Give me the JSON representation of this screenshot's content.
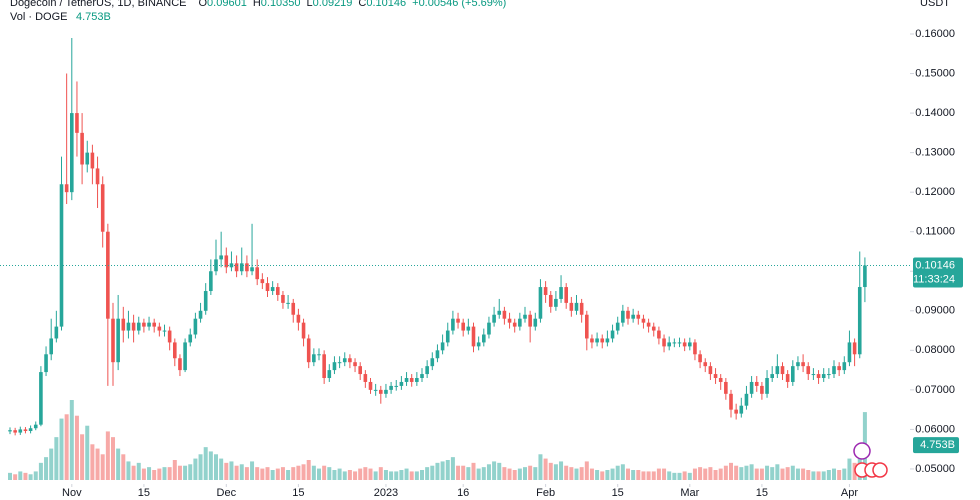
{
  "chart_data": {
    "type": "candlestick",
    "title": "Dogecoin / TetherUS, 1D, BINANCE",
    "legend": [
      {
        "key": "O",
        "value": "0.09601"
      },
      {
        "key": "H",
        "value": "0.10350"
      },
      {
        "key": "L",
        "value": "0.09219"
      },
      {
        "key": "C",
        "value": "0.10146"
      },
      {
        "key": "",
        "value": "+0.00546 (+5.69%)"
      }
    ],
    "volume_title": "Vol · DOGE",
    "volume_label": "4.753B",
    "currency": "USDT",
    "last_price_label": "0.10146",
    "countdown": "11:33:24",
    "up_color": "#26a69a",
    "down_color": "#ef5350",
    "grid": false,
    "ylim": [
      0.0467,
      0.1686
    ],
    "yticks": [
      {
        "value": 0.05,
        "label": "0.05000"
      },
      {
        "value": 0.06,
        "label": "0.06000"
      },
      {
        "value": 0.07,
        "label": "0.07000"
      },
      {
        "value": 0.08,
        "label": "0.08000"
      },
      {
        "value": 0.09,
        "label": "0.09000"
      },
      {
        "value": 0.1,
        "label": "0.10000"
      },
      {
        "value": 0.11,
        "label": "0.11000"
      },
      {
        "value": 0.12,
        "label": "0.12000"
      },
      {
        "value": 0.13,
        "label": "0.13000"
      },
      {
        "value": 0.14,
        "label": "0.14000"
      },
      {
        "value": 0.15,
        "label": "0.15000"
      },
      {
        "value": 0.16,
        "label": "0.16000"
      }
    ],
    "xticks": [
      {
        "value": 12,
        "label": "Nov"
      },
      {
        "value": 26,
        "label": "15"
      },
      {
        "value": 42,
        "label": "Dec"
      },
      {
        "value": 56,
        "label": "15"
      },
      {
        "value": 73,
        "label": "2023"
      },
      {
        "value": 88,
        "label": "16"
      },
      {
        "value": 104,
        "label": "Feb"
      },
      {
        "value": 118,
        "label": "15"
      },
      {
        "value": 132,
        "label": "Mar"
      },
      {
        "value": 146,
        "label": "15"
      },
      {
        "value": 163,
        "label": "Apr"
      }
    ],
    "open": [
      0.0595,
      0.0598,
      0.0592,
      0.06,
      0.0596,
      0.0603,
      0.0612,
      0.0745,
      0.079,
      0.083,
      0.086,
      0.122,
      0.12,
      0.14,
      0.135,
      0.127,
      0.13,
      0.126,
      0.122,
      0.11,
      0.088,
      0.077,
      0.088,
      0.085,
      0.087,
      0.085,
      0.087,
      0.086,
      0.087,
      0.086,
      0.085,
      0.085,
      0.082,
      0.078,
      0.075,
      0.082,
      0.084,
      0.088,
      0.09,
      0.095,
      0.1,
      0.103,
      0.104,
      0.101,
      0.102,
      0.1,
      0.102,
      0.1,
      0.101,
      0.098,
      0.097,
      0.095,
      0.096,
      0.094,
      0.092,
      0.092,
      0.089,
      0.087,
      0.083,
      0.077,
      0.079,
      0.079,
      0.073,
      0.075,
      0.077,
      0.077,
      0.078,
      0.077,
      0.076,
      0.074,
      0.072,
      0.07,
      0.07,
      0.069,
      0.07,
      0.071,
      0.071,
      0.072,
      0.073,
      0.072,
      0.073,
      0.074,
      0.076,
      0.078,
      0.08,
      0.082,
      0.085,
      0.088,
      0.087,
      0.085,
      0.086,
      0.081,
      0.082,
      0.084,
      0.087,
      0.089,
      0.09,
      0.088,
      0.087,
      0.086,
      0.088,
      0.089,
      0.086,
      0.088,
      0.096,
      0.094,
      0.091,
      0.093,
      0.096,
      0.092,
      0.09,
      0.092,
      0.089,
      0.083,
      0.082,
      0.083,
      0.082,
      0.083,
      0.085,
      0.087,
      0.09,
      0.088,
      0.089,
      0.088,
      0.087,
      0.086,
      0.085,
      0.083,
      0.081,
      0.082,
      0.082,
      0.082,
      0.081,
      0.082,
      0.079,
      0.077,
      0.076,
      0.074,
      0.073,
      0.072,
      0.069,
      0.065,
      0.064,
      0.066,
      0.069,
      0.072,
      0.071,
      0.069,
      0.073,
      0.074,
      0.076,
      0.074,
      0.072,
      0.076,
      0.077,
      0.076,
      0.074,
      0.074,
      0.073,
      0.074,
      0.074,
      0.076,
      0.075,
      0.077,
      0.082,
      0.079,
      0.09601
    ],
    "high": [
      0.0605,
      0.0604,
      0.0607,
      0.0606,
      0.061,
      0.062,
      0.076,
      0.081,
      0.088,
      0.09,
      0.129,
      0.15,
      0.159,
      0.148,
      0.14,
      0.133,
      0.132,
      0.129,
      0.124,
      0.112,
      0.092,
      0.094,
      0.091,
      0.09,
      0.089,
      0.0885,
      0.088,
      0.0885,
      0.088,
      0.087,
      0.0865,
      0.086,
      0.083,
      0.079,
      0.083,
      0.0855,
      0.0895,
      0.092,
      0.097,
      0.103,
      0.108,
      0.11,
      0.106,
      0.105,
      0.104,
      0.106,
      0.104,
      0.112,
      0.103,
      0.0995,
      0.0985,
      0.0975,
      0.097,
      0.095,
      0.094,
      0.093,
      0.0905,
      0.088,
      0.084,
      0.0805,
      0.0805,
      0.08,
      0.0765,
      0.0785,
      0.0785,
      0.0795,
      0.079,
      0.078,
      0.077,
      0.075,
      0.073,
      0.0715,
      0.071,
      0.0715,
      0.072,
      0.0725,
      0.0735,
      0.0745,
      0.074,
      0.0745,
      0.0755,
      0.0775,
      0.0795,
      0.0815,
      0.084,
      0.087,
      0.09,
      0.0895,
      0.088,
      0.088,
      0.087,
      0.0835,
      0.0855,
      0.0885,
      0.091,
      0.093,
      0.091,
      0.0895,
      0.088,
      0.0895,
      0.091,
      0.09,
      0.0895,
      0.098,
      0.0975,
      0.095,
      0.095,
      0.099,
      0.097,
      0.0935,
      0.094,
      0.093,
      0.09,
      0.084,
      0.0845,
      0.084,
      0.085,
      0.0865,
      0.0885,
      0.0915,
      0.091,
      0.0905,
      0.09,
      0.089,
      0.088,
      0.087,
      0.086,
      0.084,
      0.0835,
      0.083,
      0.0832,
      0.083,
      0.0832,
      0.0828,
      0.08,
      0.078,
      0.077,
      0.0755,
      0.074,
      0.073,
      0.07,
      0.0665,
      0.068,
      0.071,
      0.0735,
      0.0735,
      0.072,
      0.075,
      0.076,
      0.079,
      0.077,
      0.075,
      0.0775,
      0.0785,
      0.079,
      0.077,
      0.0755,
      0.075,
      0.0755,
      0.0755,
      0.0775,
      0.077,
      0.0785,
      0.085,
      0.083,
      0.105,
      0.1035
    ],
    "low": [
      0.0588,
      0.0585,
      0.0586,
      0.059,
      0.059,
      0.0598,
      0.0608,
      0.0735,
      0.0775,
      0.082,
      0.085,
      0.117,
      0.118,
      0.129,
      0.122,
      0.125,
      0.122,
      0.116,
      0.106,
      0.071,
      0.071,
      0.075,
      0.082,
      0.083,
      0.082,
      0.084,
      0.0845,
      0.085,
      0.0845,
      0.0835,
      0.0835,
      0.08,
      0.076,
      0.0735,
      0.0745,
      0.081,
      0.083,
      0.087,
      0.089,
      0.094,
      0.099,
      0.101,
      0.0995,
      0.1,
      0.0985,
      0.099,
      0.0985,
      0.099,
      0.0965,
      0.0955,
      0.0935,
      0.094,
      0.0925,
      0.0905,
      0.0905,
      0.087,
      0.085,
      0.081,
      0.0755,
      0.076,
      0.0775,
      0.0715,
      0.072,
      0.074,
      0.0755,
      0.076,
      0.0755,
      0.0745,
      0.0725,
      0.0705,
      0.069,
      0.0685,
      0.0665,
      0.068,
      0.069,
      0.0698,
      0.07,
      0.071,
      0.0708,
      0.071,
      0.072,
      0.073,
      0.075,
      0.077,
      0.079,
      0.081,
      0.084,
      0.0855,
      0.0835,
      0.084,
      0.0795,
      0.08,
      0.081,
      0.083,
      0.086,
      0.088,
      0.0865,
      0.0855,
      0.0845,
      0.085,
      0.087,
      0.082,
      0.085,
      0.087,
      0.092,
      0.0895,
      0.09,
      0.092,
      0.0905,
      0.0885,
      0.089,
      0.087,
      0.08,
      0.0805,
      0.081,
      0.0805,
      0.081,
      0.082,
      0.084,
      0.086,
      0.0865,
      0.087,
      0.0865,
      0.0855,
      0.0845,
      0.0835,
      0.0815,
      0.0795,
      0.08,
      0.0808,
      0.0808,
      0.0798,
      0.08,
      0.0775,
      0.0755,
      0.0745,
      0.0725,
      0.0715,
      0.07,
      0.0675,
      0.063,
      0.0625,
      0.063,
      0.065,
      0.068,
      0.0695,
      0.0675,
      0.068,
      0.072,
      0.073,
      0.0725,
      0.0705,
      0.071,
      0.075,
      0.0745,
      0.0725,
      0.0725,
      0.0715,
      0.072,
      0.0728,
      0.073,
      0.0735,
      0.074,
      0.076,
      0.076,
      0.078,
      0.09219
    ],
    "close": [
      0.0598,
      0.0592,
      0.06,
      0.0596,
      0.0603,
      0.0612,
      0.0745,
      0.079,
      0.083,
      0.086,
      0.122,
      0.12,
      0.14,
      0.135,
      0.127,
      0.13,
      0.126,
      0.122,
      0.11,
      0.088,
      0.077,
      0.088,
      0.085,
      0.087,
      0.085,
      0.087,
      0.086,
      0.087,
      0.086,
      0.085,
      0.085,
      0.082,
      0.078,
      0.075,
      0.082,
      0.084,
      0.088,
      0.09,
      0.095,
      0.1,
      0.103,
      0.104,
      0.101,
      0.102,
      0.1,
      0.102,
      0.1,
      0.101,
      0.098,
      0.097,
      0.095,
      0.096,
      0.094,
      0.092,
      0.092,
      0.089,
      0.087,
      0.083,
      0.077,
      0.079,
      0.079,
      0.073,
      0.075,
      0.077,
      0.077,
      0.078,
      0.077,
      0.076,
      0.074,
      0.072,
      0.07,
      0.07,
      0.069,
      0.07,
      0.071,
      0.071,
      0.072,
      0.073,
      0.072,
      0.073,
      0.074,
      0.076,
      0.078,
      0.08,
      0.082,
      0.085,
      0.088,
      0.087,
      0.085,
      0.086,
      0.081,
      0.082,
      0.084,
      0.087,
      0.089,
      0.09,
      0.088,
      0.087,
      0.086,
      0.088,
      0.089,
      0.086,
      0.088,
      0.096,
      0.094,
      0.091,
      0.093,
      0.096,
      0.092,
      0.09,
      0.092,
      0.089,
      0.083,
      0.082,
      0.083,
      0.082,
      0.083,
      0.085,
      0.087,
      0.09,
      0.088,
      0.089,
      0.088,
      0.087,
      0.086,
      0.085,
      0.083,
      0.081,
      0.082,
      0.082,
      0.082,
      0.081,
      0.082,
      0.079,
      0.077,
      0.076,
      0.074,
      0.073,
      0.072,
      0.069,
      0.065,
      0.064,
      0.066,
      0.069,
      0.072,
      0.071,
      0.069,
      0.073,
      0.074,
      0.076,
      0.074,
      0.072,
      0.076,
      0.077,
      0.076,
      0.074,
      0.074,
      0.073,
      0.074,
      0.074,
      0.076,
      0.075,
      0.077,
      0.082,
      0.079,
      0.09601,
      0.10146
    ],
    "volume": [
      0.5,
      0.4,
      0.6,
      0.5,
      0.4,
      0.6,
      1.2,
      1.6,
      2.2,
      3.0,
      4.3,
      4.6,
      5.6,
      4.5,
      3.2,
      3.8,
      2.5,
      2.2,
      1.8,
      3.4,
      3.0,
      2.2,
      1.8,
      1.3,
      1.0,
      1.2,
      0.8,
      0.9,
      0.7,
      0.8,
      0.9,
      0.9,
      1.4,
      1.0,
      1.0,
      1.1,
      1.5,
      1.8,
      2.3,
      2.0,
      1.8,
      1.5,
      1.2,
      1.3,
      1.0,
      1.1,
      0.9,
      1.3,
      0.9,
      0.8,
      0.9,
      0.7,
      0.8,
      0.9,
      0.7,
      0.9,
      1.0,
      1.1,
      1.4,
      1.0,
      0.8,
      1.0,
      0.9,
      0.7,
      0.8,
      0.6,
      0.7,
      0.6,
      0.8,
      0.9,
      0.8,
      0.6,
      0.9,
      0.7,
      0.6,
      0.6,
      0.7,
      0.8,
      0.6,
      0.6,
      0.7,
      0.9,
      1.0,
      1.2,
      1.3,
      1.4,
      1.6,
      1.0,
      1.0,
      0.9,
      1.2,
      0.8,
      0.9,
      1.1,
      1.3,
      1.2,
      0.9,
      0.8,
      0.7,
      0.8,
      0.9,
      1.0,
      0.9,
      1.8,
      1.5,
      1.2,
      1.1,
      1.3,
      1.0,
      0.9,
      0.8,
      0.9,
      1.3,
      0.8,
      0.7,
      0.6,
      0.7,
      0.8,
      1.0,
      1.1,
      0.8,
      0.7,
      0.7,
      0.6,
      0.6,
      0.6,
      0.8,
      0.8,
      0.6,
      0.5,
      0.5,
      0.6,
      0.5,
      0.8,
      0.9,
      0.8,
      0.9,
      0.7,
      0.8,
      1.0,
      1.2,
      1.0,
      0.9,
      1.0,
      1.1,
      0.8,
      0.8,
      1.0,
      0.9,
      1.1,
      0.8,
      0.9,
      1.0,
      0.8,
      0.8,
      0.7,
      0.6,
      0.6,
      0.6,
      0.7,
      0.8,
      0.7,
      0.8,
      1.5,
      1.2,
      2.0,
      4.753
    ]
  }
}
